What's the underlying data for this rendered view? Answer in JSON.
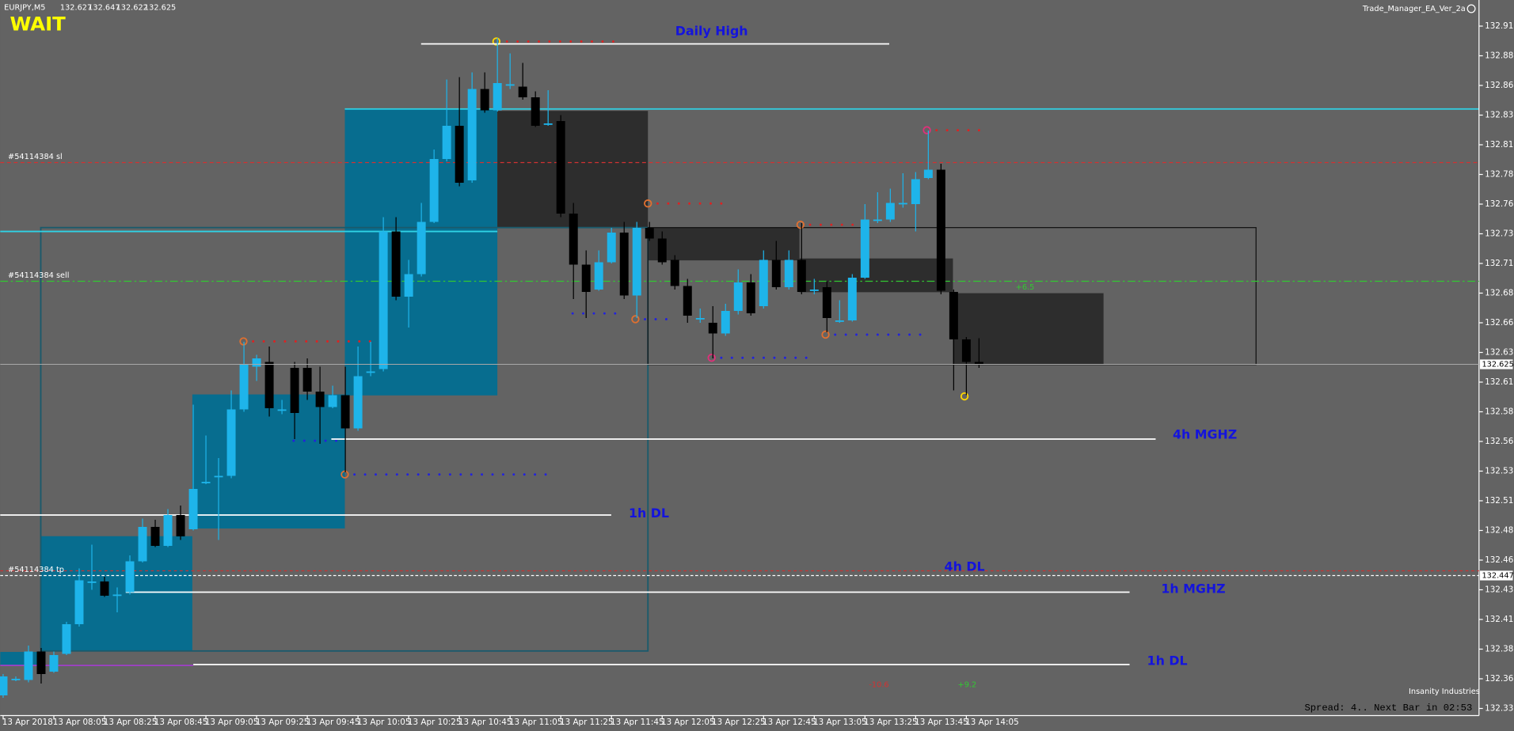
{
  "chart_data": {
    "type": "candlestick",
    "symbol": "EURJPY,M5",
    "up_color": "#1eb4ea",
    "down_color": "#000000",
    "background": "#636363",
    "grid": false,
    "categories": [
      "13 Apr 2018",
      null,
      null,
      null,
      "13 Apr 08:05",
      null,
      null,
      null,
      "13 Apr 08:25",
      null,
      null,
      null,
      "13 Apr 08:45",
      null,
      null,
      null,
      "13 Apr 09:05",
      null,
      null,
      null,
      "13 Apr 09:25",
      null,
      null,
      null,
      "13 Apr 09:45",
      null,
      null,
      null,
      "13 Apr 10:05",
      null,
      null,
      null,
      "13 Apr 10:25",
      null,
      null,
      null,
      "13 Apr 10:45",
      null,
      null,
      null,
      "13 Apr 11:05",
      null,
      null,
      null,
      "13 Apr 11:25",
      null,
      null,
      null,
      "13 Apr 11:45",
      null,
      null,
      null,
      "13 Apr 12:05",
      null,
      null,
      null,
      "13 Apr 12:25",
      null,
      null,
      null,
      "13 Apr 12:45",
      null,
      null,
      null,
      "13 Apr 13:05",
      null,
      null,
      null,
      "13 Apr 13:25",
      null,
      null,
      null,
      "13 Apr 13:45",
      null,
      null,
      null,
      "13 Apr 14:05",
      null
    ],
    "open": [
      132.346,
      132.36,
      132.359,
      132.383,
      132.366,
      132.381,
      132.406,
      132.442,
      132.442,
      132.431,
      132.433,
      132.459,
      132.488,
      132.472,
      132.498,
      132.486,
      132.526,
      132.531,
      132.531,
      132.587,
      132.623,
      132.627,
      132.587,
      132.622,
      132.622,
      132.602,
      132.589,
      132.599,
      132.571,
      132.619,
      132.621,
      132.737,
      132.682,
      132.701,
      132.745,
      132.798,
      132.826,
      132.78,
      132.857,
      132.839,
      132.861,
      132.859,
      132.85,
      132.828,
      132.83,
      132.752,
      132.709,
      132.688,
      132.711,
      132.736,
      132.683,
      132.74,
      132.731,
      132.713,
      132.691,
      132.664,
      132.66,
      132.651,
      132.67,
      132.694,
      132.674,
      132.713,
      132.69,
      132.713,
      132.688,
      132.69,
      132.662,
      132.662,
      132.698,
      132.747,
      132.747,
      132.761,
      132.76,
      132.782,
      132.789,
      132.686,
      132.646,
      132.627
    ],
    "high": [
      132.364,
      132.362,
      132.388,
      132.386,
      132.383,
      132.408,
      132.453,
      132.473,
      132.446,
      132.437,
      132.464,
      132.495,
      132.494,
      132.503,
      132.506,
      132.591,
      132.565,
      132.546,
      132.603,
      132.644,
      132.633,
      132.64,
      132.595,
      132.627,
      132.63,
      132.623,
      132.607,
      132.623,
      132.64,
      132.644,
      132.749,
      132.749,
      132.713,
      132.761,
      132.806,
      132.865,
      132.867,
      132.871,
      132.871,
      132.9,
      132.887,
      132.879,
      132.855,
      132.856,
      132.835,
      132.761,
      132.721,
      132.721,
      132.74,
      132.745,
      132.745,
      132.745,
      132.737,
      132.717,
      132.697,
      132.672,
      132.674,
      132.676,
      132.705,
      132.701,
      132.721,
      132.729,
      132.721,
      132.744,
      132.697,
      132.695,
      132.679,
      132.701,
      132.76,
      132.77,
      132.773,
      132.786,
      132.787,
      132.822,
      132.794,
      132.688,
      132.648,
      132.647
    ],
    "low": [
      132.344,
      132.358,
      132.357,
      132.356,
      132.365,
      132.38,
      132.404,
      132.435,
      132.429,
      132.416,
      132.431,
      132.458,
      132.471,
      132.471,
      132.477,
      132.485,
      132.524,
      132.477,
      132.529,
      132.585,
      132.611,
      132.581,
      132.583,
      132.562,
      132.595,
      132.558,
      132.588,
      132.534,
      132.569,
      132.615,
      132.619,
      132.679,
      132.656,
      132.699,
      132.744,
      132.796,
      132.775,
      132.778,
      132.837,
      132.838,
      132.857,
      132.848,
      132.825,
      132.826,
      132.749,
      132.68,
      132.664,
      132.687,
      132.71,
      132.68,
      132.664,
      132.729,
      132.709,
      132.688,
      132.66,
      132.66,
      132.63,
      132.649,
      132.667,
      132.666,
      132.672,
      132.688,
      132.688,
      132.684,
      132.684,
      132.652,
      132.66,
      132.661,
      132.697,
      132.744,
      132.745,
      132.757,
      132.737,
      132.781,
      132.684,
      132.603,
      132.599,
      132.622
    ],
    "close": [
      132.362,
      132.36,
      132.383,
      132.364,
      132.38,
      132.406,
      132.443,
      132.442,
      132.43,
      132.431,
      132.459,
      132.488,
      132.472,
      132.498,
      132.48,
      132.52,
      132.526,
      132.531,
      132.587,
      132.625,
      132.63,
      132.588,
      132.587,
      132.584,
      132.602,
      132.589,
      132.599,
      132.571,
      132.615,
      132.619,
      132.737,
      132.682,
      132.701,
      132.745,
      132.798,
      132.826,
      132.778,
      132.857,
      132.839,
      132.862,
      132.861,
      132.85,
      132.826,
      132.828,
      132.752,
      132.709,
      132.686,
      132.711,
      132.736,
      132.683,
      132.74,
      132.731,
      132.711,
      132.691,
      132.666,
      132.664,
      132.651,
      132.67,
      132.694,
      132.668,
      132.713,
      132.69,
      132.713,
      132.686,
      132.688,
      132.664,
      132.662,
      132.698,
      132.747,
      132.747,
      132.761,
      132.761,
      132.781,
      132.789,
      132.687,
      132.646,
      132.627,
      132.625
    ],
    "ylim": [
      132.329,
      132.932
    ],
    "yticks": [
      {
        "value": 132.91,
        "label": "132.910"
      },
      132.885,
      {
        "value": 132.86,
        "label": "132.860"
      },
      132.835,
      {
        "value": 132.81,
        "label": "132.810"
      },
      132.785,
      {
        "value": 132.76,
        "label": "132.760"
      },
      132.735,
      {
        "value": 132.71,
        "label": "132.710"
      },
      132.685,
      {
        "value": 132.66,
        "label": "132.660"
      },
      132.635,
      {
        "value": 132.61,
        "label": "132.610"
      },
      132.585,
      {
        "value": 132.56,
        "label": "132.560"
      },
      132.535,
      {
        "value": 132.51,
        "label": "132.510"
      },
      132.485,
      {
        "value": 132.46,
        "label": "132.460"
      },
      132.435,
      {
        "value": 132.41,
        "label": "132.410"
      },
      132.385,
      {
        "value": 132.36,
        "label": "132.360"
      },
      132.335
    ],
    "levels": [
      {
        "label": "Daily High",
        "value": 132.895,
        "color": "#ffffff"
      },
      {
        "label": "4h MGHZ",
        "value": 132.562,
        "color": "#ffffff"
      },
      {
        "label": "1h DL",
        "value": 132.498,
        "color": "#ffffff"
      },
      {
        "label": "4h DL",
        "value": 132.451,
        "color": "#c83232"
      },
      {
        "label": "1h MGHZ",
        "value": 132.433,
        "color": "#ffffff"
      },
      {
        "label": "1h DL",
        "value": 132.372,
        "color": "#ffffff"
      }
    ],
    "orders": [
      {
        "label": "#54114384 sl",
        "value": 132.795,
        "color": "#d23232"
      },
      {
        "label": "#54114384 sell",
        "value": 132.695,
        "color": "#32c832"
      },
      {
        "label": "#54114384 tp",
        "value": 132.447,
        "color": "#ffffff"
      }
    ]
  },
  "texts": {
    "signal": "WAIT",
    "ea_name": "Trade_Manager_EA_Ver_2a",
    "profits": [
      "+6.5",
      "-10.6",
      "+9.2"
    ],
    "status": "Spread: 4.. Next Bar in 02:53",
    "logo": "Insanity Industries"
  }
}
